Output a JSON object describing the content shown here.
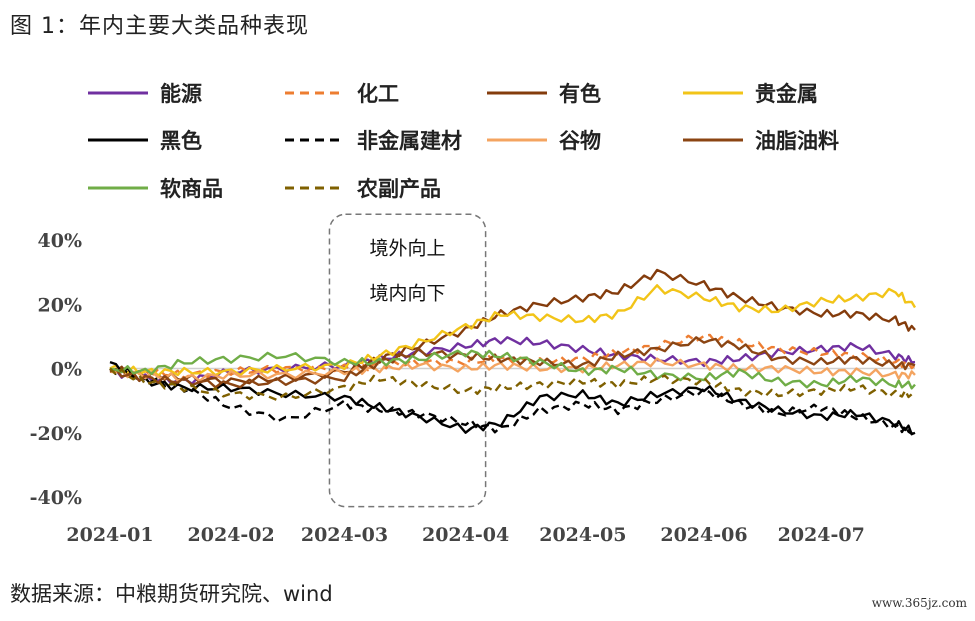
{
  "figure_title": "图 1：年内主要大类品种表现",
  "source_note": "数据来源：中粮期货研究院、wind",
  "watermark": "www.365jz.com",
  "chart_data": {
    "type": "line",
    "title": "",
    "xlabel": "",
    "ylabel": "",
    "ylim": [
      -40,
      40
    ],
    "yticks": [
      -40,
      -20,
      0,
      20,
      40
    ],
    "ytick_labels": [
      "-40%",
      "-20%",
      "0%",
      "20%",
      "40%"
    ],
    "xlim": [
      "2024-01-01",
      "2024-07-25"
    ],
    "xticks": [
      "2024-01-01",
      "2024-02-01",
      "2024-03-01",
      "2024-04-01",
      "2024-05-01",
      "2024-06-01",
      "2024-07-01"
    ],
    "xtick_labels": [
      "2024-01",
      "2024-02",
      "2024-03",
      "2024-04",
      "2024-05",
      "2024-06",
      "2024-07"
    ],
    "grid": false,
    "legend_position": "top",
    "annotation": {
      "lines": [
        "境外向上",
        "境内向下"
      ],
      "x_range": [
        "2024-03-01",
        "2024-04-01"
      ],
      "y_range": [
        -43,
        48
      ]
    },
    "series": [
      {
        "name": "能源",
        "color": "#7030A0",
        "dash": "solid",
        "x": [
          "2024-01-01",
          "2024-01-10",
          "2024-01-20",
          "2024-02-01",
          "2024-02-15",
          "2024-03-01",
          "2024-03-10",
          "2024-03-20",
          "2024-04-01",
          "2024-04-10",
          "2024-04-20",
          "2024-05-01",
          "2024-05-10",
          "2024-05-20",
          "2024-06-01",
          "2024-06-10",
          "2024-06-20",
          "2024-07-01",
          "2024-07-10",
          "2024-07-20",
          "2024-07-25"
        ],
        "y": [
          -1,
          -3,
          -4,
          -1,
          0,
          1,
          3,
          5,
          7,
          9,
          8,
          6,
          4,
          3,
          2,
          3,
          5,
          6,
          7,
          4,
          2
        ]
      },
      {
        "name": "化工",
        "color": "#ED7D31",
        "dash": "dashed",
        "x": [
          "2024-01-01",
          "2024-01-10",
          "2024-01-20",
          "2024-02-01",
          "2024-02-15",
          "2024-03-01",
          "2024-03-10",
          "2024-03-20",
          "2024-04-01",
          "2024-04-10",
          "2024-04-20",
          "2024-05-01",
          "2024-05-10",
          "2024-05-20",
          "2024-06-01",
          "2024-06-10",
          "2024-06-20",
          "2024-07-01",
          "2024-07-10",
          "2024-07-20",
          "2024-07-25"
        ],
        "y": [
          0,
          -1,
          -2,
          -1,
          0,
          0,
          1,
          2,
          2,
          3,
          2,
          3,
          5,
          7,
          10,
          8,
          6,
          5,
          4,
          2,
          1
        ]
      },
      {
        "name": "有色",
        "color": "#843C0C",
        "dash": "solid",
        "x": [
          "2024-01-01",
          "2024-01-10",
          "2024-01-20",
          "2024-02-01",
          "2024-02-15",
          "2024-03-01",
          "2024-03-10",
          "2024-03-20",
          "2024-04-01",
          "2024-04-10",
          "2024-04-20",
          "2024-05-01",
          "2024-05-10",
          "2024-05-20",
          "2024-06-01",
          "2024-06-10",
          "2024-06-20",
          "2024-07-01",
          "2024-07-10",
          "2024-07-20",
          "2024-07-25"
        ],
        "y": [
          0,
          -2,
          -3,
          -4,
          -3,
          -1,
          3,
          7,
          12,
          17,
          20,
          22,
          24,
          30,
          26,
          22,
          19,
          17,
          17,
          15,
          12
        ]
      },
      {
        "name": "贵金属",
        "color": "#F2C418",
        "dash": "solid",
        "x": [
          "2024-01-01",
          "2024-01-10",
          "2024-01-20",
          "2024-02-01",
          "2024-02-15",
          "2024-03-01",
          "2024-03-10",
          "2024-03-20",
          "2024-04-01",
          "2024-04-10",
          "2024-04-20",
          "2024-05-01",
          "2024-05-10",
          "2024-05-20",
          "2024-06-01",
          "2024-06-10",
          "2024-06-20",
          "2024-07-01",
          "2024-07-10",
          "2024-07-20",
          "2024-07-25"
        ],
        "y": [
          0,
          -1,
          -1,
          -1,
          0,
          1,
          4,
          8,
          13,
          17,
          16,
          15,
          17,
          25,
          22,
          19,
          18,
          21,
          22,
          24,
          19
        ]
      },
      {
        "name": "黑色",
        "color": "#000000",
        "dash": "solid",
        "x": [
          "2024-01-01",
          "2024-01-10",
          "2024-01-20",
          "2024-02-01",
          "2024-02-15",
          "2024-03-01",
          "2024-03-10",
          "2024-03-20",
          "2024-04-01",
          "2024-04-10",
          "2024-04-20",
          "2024-05-01",
          "2024-05-10",
          "2024-05-20",
          "2024-06-01",
          "2024-06-10",
          "2024-06-20",
          "2024-07-01",
          "2024-07-10",
          "2024-07-20",
          "2024-07-25"
        ],
        "y": [
          2,
          -4,
          -6,
          -6,
          -8,
          -9,
          -12,
          -15,
          -19,
          -17,
          -9,
          -8,
          -11,
          -8,
          -6,
          -10,
          -13,
          -15,
          -14,
          -17,
          -20
        ]
      },
      {
        "name": "非金属建材",
        "color": "#000000",
        "dash": "dashed",
        "x": [
          "2024-01-01",
          "2024-01-10",
          "2024-01-20",
          "2024-02-01",
          "2024-02-15",
          "2024-03-01",
          "2024-03-10",
          "2024-03-20",
          "2024-04-01",
          "2024-04-10",
          "2024-04-20",
          "2024-05-01",
          "2024-05-10",
          "2024-05-20",
          "2024-06-01",
          "2024-06-10",
          "2024-06-20",
          "2024-07-01",
          "2024-07-10",
          "2024-07-20",
          "2024-07-25"
        ],
        "y": [
          0,
          -3,
          -6,
          -12,
          -16,
          -11,
          -13,
          -14,
          -17,
          -19,
          -13,
          -11,
          -13,
          -10,
          -7,
          -11,
          -14,
          -12,
          -15,
          -18,
          -20
        ]
      },
      {
        "name": "谷物",
        "color": "#F4A460",
        "dash": "solid",
        "x": [
          "2024-01-01",
          "2024-01-10",
          "2024-01-20",
          "2024-02-01",
          "2024-02-15",
          "2024-03-01",
          "2024-03-10",
          "2024-03-20",
          "2024-04-01",
          "2024-04-10",
          "2024-04-20",
          "2024-05-01",
          "2024-05-10",
          "2024-05-20",
          "2024-06-01",
          "2024-06-10",
          "2024-06-20",
          "2024-07-01",
          "2024-07-10",
          "2024-07-20",
          "2024-07-25"
        ],
        "y": [
          -1,
          -2,
          -3,
          -2,
          -2,
          -1,
          0,
          1,
          0,
          1,
          0,
          0,
          1,
          2,
          1,
          0,
          0,
          -1,
          -1,
          -2,
          -2
        ]
      },
      {
        "name": "油脂油料",
        "color": "#8B4513",
        "dash": "solid",
        "x": [
          "2024-01-01",
          "2024-01-10",
          "2024-01-20",
          "2024-02-01",
          "2024-02-15",
          "2024-03-01",
          "2024-03-10",
          "2024-03-20",
          "2024-04-01",
          "2024-04-10",
          "2024-04-20",
          "2024-05-01",
          "2024-05-10",
          "2024-05-20",
          "2024-06-01",
          "2024-06-10",
          "2024-06-20",
          "2024-07-01",
          "2024-07-10",
          "2024-07-20",
          "2024-07-25"
        ],
        "y": [
          -1,
          -3,
          -4,
          -5,
          -4,
          -3,
          2,
          5,
          4,
          3,
          2,
          1,
          4,
          6,
          9,
          7,
          3,
          2,
          3,
          1,
          1
        ]
      },
      {
        "name": "软商品",
        "color": "#70AD47",
        "dash": "solid",
        "x": [
          "2024-01-01",
          "2024-01-10",
          "2024-01-20",
          "2024-02-01",
          "2024-02-15",
          "2024-03-01",
          "2024-03-10",
          "2024-03-20",
          "2024-04-01",
          "2024-04-10",
          "2024-04-20",
          "2024-05-01",
          "2024-05-10",
          "2024-05-20",
          "2024-06-01",
          "2024-06-10",
          "2024-06-20",
          "2024-07-01",
          "2024-07-10",
          "2024-07-20",
          "2024-07-25"
        ],
        "y": [
          0,
          -1,
          2,
          3,
          4,
          2,
          2,
          3,
          5,
          4,
          2,
          -1,
          0,
          -2,
          -3,
          -1,
          -4,
          -5,
          -3,
          -5,
          -5
        ]
      },
      {
        "name": "农副产品",
        "color": "#7F6000",
        "dash": "dashed",
        "x": [
          "2024-01-01",
          "2024-01-10",
          "2024-01-20",
          "2024-02-01",
          "2024-02-15",
          "2024-03-01",
          "2024-03-10",
          "2024-03-20",
          "2024-04-01",
          "2024-04-10",
          "2024-04-20",
          "2024-05-01",
          "2024-05-10",
          "2024-05-20",
          "2024-06-01",
          "2024-06-10",
          "2024-06-20",
          "2024-07-01",
          "2024-07-10",
          "2024-07-20",
          "2024-07-25"
        ],
        "y": [
          0,
          -4,
          -6,
          -8,
          -9,
          -6,
          -3,
          -5,
          -7,
          -6,
          -5,
          -4,
          -5,
          -3,
          -4,
          -7,
          -8,
          -7,
          -6,
          -8,
          -8
        ]
      }
    ]
  }
}
